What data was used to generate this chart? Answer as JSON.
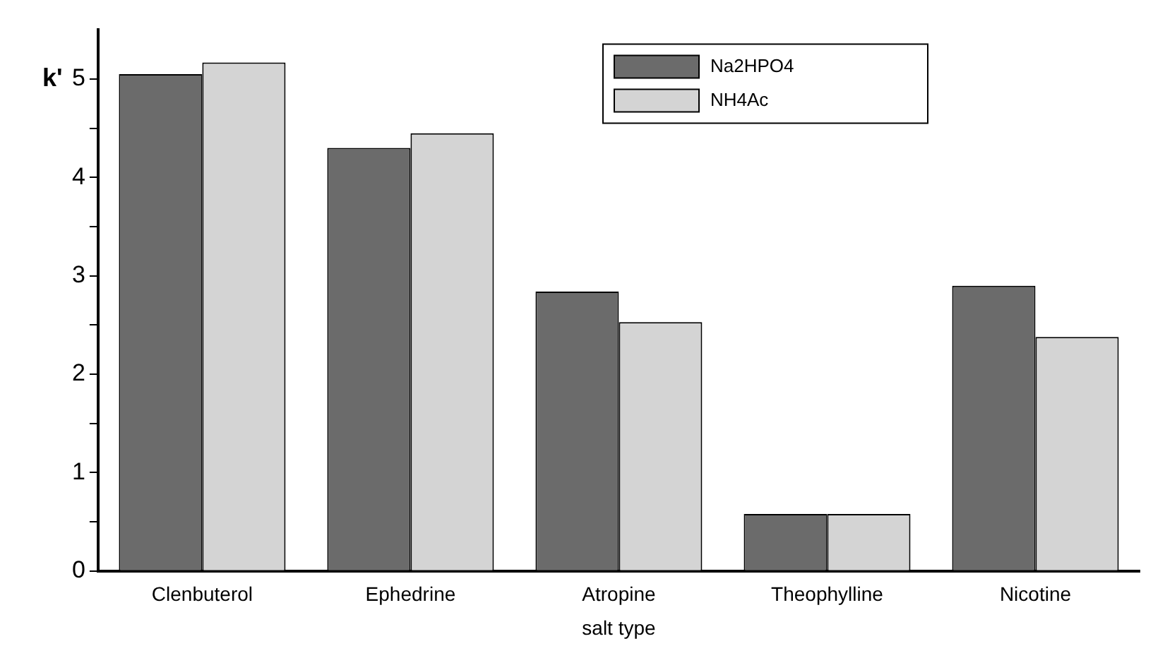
{
  "chart_data": {
    "type": "bar",
    "xlabel": "salt type",
    "ylabel": "k'",
    "categories": [
      "Clenbuterol",
      "Ephedrine",
      "Atropine",
      "Theophylline",
      "Nicotine"
    ],
    "series": [
      {
        "name": "Na2HPO4",
        "color": "#6b6b6b",
        "values": [
          5.05,
          4.3,
          2.84,
          0.58,
          2.9
        ]
      },
      {
        "name": "NH4Ac",
        "color": "#d4d4d4",
        "values": [
          5.17,
          4.45,
          2.53,
          0.58,
          2.38
        ]
      }
    ],
    "ylim": [
      0,
      5.5
    ],
    "yticks": [
      0,
      {
        "value": 0.5,
        "label": null
      },
      1,
      {
        "value": 1.5,
        "label": null
      },
      2,
      {
        "value": 2.5,
        "label": null
      },
      3,
      {
        "value": 3.5,
        "label": null
      },
      4,
      {
        "value": 4.5,
        "label": null
      },
      5
    ],
    "grid": false,
    "legend": "top right"
  }
}
